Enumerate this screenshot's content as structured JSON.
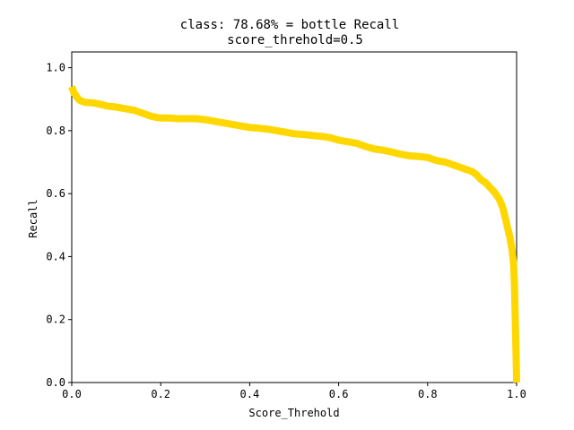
{
  "chart_data": {
    "type": "line",
    "title": "class: 78.68% = bottle Recall",
    "subtitle": "score_threhold=0.5",
    "xlabel": "Score_Threhold",
    "ylabel": "Recall",
    "xlim": [
      0,
      1
    ],
    "ylim": [
      0,
      1.05
    ],
    "xticks": [
      "0.0",
      "0.2",
      "0.4",
      "0.6",
      "0.8",
      "1.0"
    ],
    "yticks": [
      "0.0",
      "0.2",
      "0.4",
      "0.6",
      "0.8",
      "1.0"
    ],
    "grid": false,
    "series": [
      {
        "color": "#ffd700",
        "x": [
          0.0,
          0.005,
          0.01,
          0.015,
          0.02,
          0.03,
          0.05,
          0.07,
          0.08,
          0.1,
          0.12,
          0.14,
          0.16,
          0.18,
          0.2,
          0.22,
          0.24,
          0.28,
          0.3,
          0.32,
          0.34,
          0.36,
          0.38,
          0.4,
          0.42,
          0.44,
          0.46,
          0.48,
          0.5,
          0.52,
          0.54,
          0.56,
          0.58,
          0.6,
          0.62,
          0.64,
          0.66,
          0.68,
          0.7,
          0.72,
          0.74,
          0.76,
          0.78,
          0.8,
          0.82,
          0.84,
          0.86,
          0.88,
          0.9,
          0.91,
          0.92,
          0.93,
          0.94,
          0.95,
          0.96,
          0.965,
          0.97,
          0.975,
          0.98,
          0.985,
          0.99,
          0.993,
          0.995,
          0.997,
          0.999,
          1.0
        ],
        "y": [
          0.94,
          0.92,
          0.91,
          0.9,
          0.895,
          0.89,
          0.888,
          0.882,
          0.878,
          0.875,
          0.87,
          0.865,
          0.855,
          0.845,
          0.84,
          0.84,
          0.838,
          0.838,
          0.835,
          0.83,
          0.825,
          0.82,
          0.815,
          0.81,
          0.808,
          0.805,
          0.8,
          0.795,
          0.79,
          0.788,
          0.785,
          0.782,
          0.778,
          0.77,
          0.765,
          0.76,
          0.75,
          0.742,
          0.738,
          0.732,
          0.725,
          0.72,
          0.718,
          0.715,
          0.705,
          0.7,
          0.69,
          0.68,
          0.67,
          0.66,
          0.645,
          0.635,
          0.62,
          0.605,
          0.585,
          0.57,
          0.55,
          0.52,
          0.49,
          0.46,
          0.42,
          0.38,
          0.32,
          0.2,
          0.08,
          0.0
        ]
      }
    ]
  }
}
